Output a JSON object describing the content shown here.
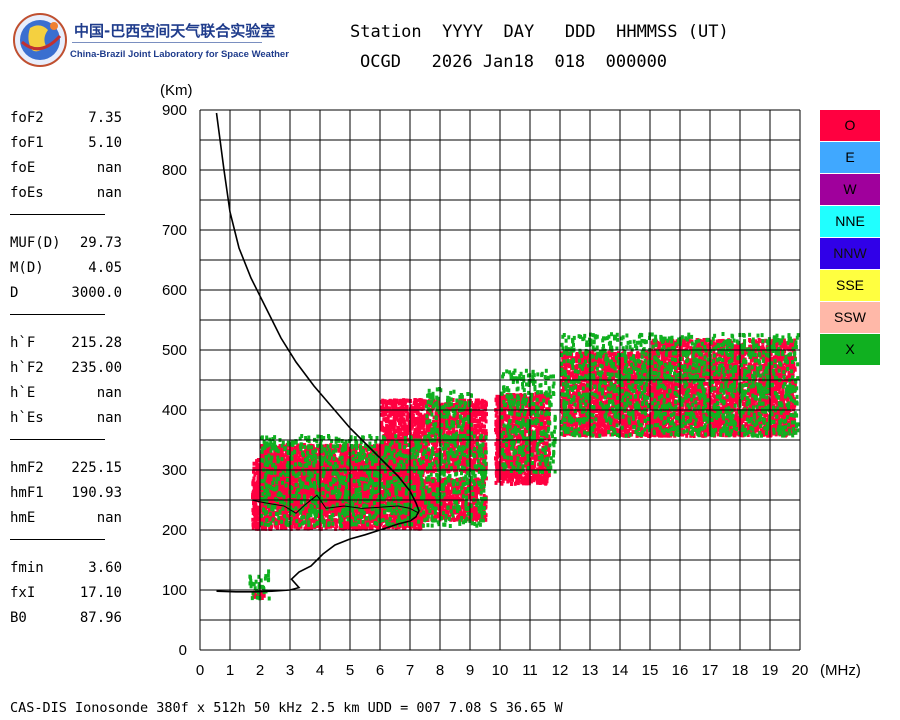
{
  "logo": {
    "icon": "globe-logo-icon",
    "name_cn": "中国-巴西空间天气联合实验室",
    "name_en": "China-Brazil Joint Laboratory for Space Weather"
  },
  "header": {
    "line1": "Station  YYYY  DAY   DDD  HHMMSS (UT)",
    "line2": "OCGD   2026 Jan18  018  000000"
  },
  "parameters": [
    {
      "group": [
        {
          "name": "foF2",
          "value": "7.35"
        },
        {
          "name": "foF1",
          "value": "5.10"
        },
        {
          "name": "foE",
          "value": "nan"
        },
        {
          "name": "foEs",
          "value": "nan"
        }
      ]
    },
    {
      "group": [
        {
          "name": "MUF(D)",
          "value": "29.73"
        },
        {
          "name": "M(D)",
          "value": "4.05"
        },
        {
          "name": "D",
          "value": "3000.0"
        }
      ]
    },
    {
      "group": [
        {
          "name": "h`F",
          "value": "215.28"
        },
        {
          "name": "h`F2",
          "value": "235.00"
        },
        {
          "name": "h`E",
          "value": "nan"
        },
        {
          "name": "h`Es",
          "value": "nan"
        }
      ]
    },
    {
      "group": [
        {
          "name": "hmF2",
          "value": "225.15"
        },
        {
          "name": "hmF1",
          "value": "190.93"
        },
        {
          "name": "hmE",
          "value": "nan"
        }
      ]
    },
    {
      "group": [
        {
          "name": "fmin",
          "value": "3.60"
        },
        {
          "name": "fxI",
          "value": "17.10"
        },
        {
          "name": "B0",
          "value": "87.96"
        }
      ]
    }
  ],
  "legend": [
    {
      "label": "O",
      "color": "#ff0040"
    },
    {
      "label": "E",
      "color": "#40a8ff"
    },
    {
      "label": "W",
      "color": "#a0009c"
    },
    {
      "label": "NNE",
      "color": "#20ffff"
    },
    {
      "label": "NNW",
      "color": "#3000e8"
    },
    {
      "label": "SSE",
      "color": "#ffff40"
    },
    {
      "label": "SSW",
      "color": "#ffb8a8"
    },
    {
      "label": "X",
      "color": "#10b020"
    }
  ],
  "footer": "CAS-DIS Ionosonde 380f x 512h 50 kHz 2.5 km UDD = 007 7.08 S 36.65 W",
  "chart_data": {
    "type": "scatter",
    "title": "",
    "xlabel": "(MHz)",
    "ylabel": "(Km)",
    "xlim": [
      0,
      20
    ],
    "ylim": [
      0,
      900
    ],
    "xticks": [
      "0",
      "1",
      "2",
      "3",
      "4",
      "5",
      "6",
      "7",
      "8",
      "9",
      "10",
      "11",
      "12",
      "13",
      "14",
      "15",
      "16",
      "17",
      "18",
      "19",
      "20"
    ],
    "yticks": [
      "0",
      "100",
      "200",
      "300",
      "400",
      "500",
      "600",
      "700",
      "800",
      "900"
    ],
    "grid": true,
    "colors": {
      "O": "#ff0040",
      "X": "#10b020",
      "profile": "#000000"
    },
    "echo_regions": [
      {
        "name": "O",
        "f_min": 1.7,
        "f_max": 2.1,
        "h_min": 88,
        "h_max": 100
      },
      {
        "name": "O",
        "f_min": 1.7,
        "f_max": 7.4,
        "h_min": 205,
        "h_max": 320
      },
      {
        "name": "O",
        "f_min": 2.0,
        "f_max": 6.8,
        "h_min": 240,
        "h_max": 345
      },
      {
        "name": "O",
        "f_min": 6.5,
        "f_max": 9.5,
        "h_min": 220,
        "h_max": 290
      },
      {
        "name": "O",
        "f_min": 6.0,
        "f_max": 9.5,
        "h_min": 300,
        "h_max": 420
      },
      {
        "name": "O",
        "f_min": 9.8,
        "f_max": 11.6,
        "h_min": 280,
        "h_max": 430
      },
      {
        "name": "O",
        "f_min": 12.0,
        "f_max": 15.5,
        "h_min": 360,
        "h_max": 500
      },
      {
        "name": "O",
        "f_min": 15.0,
        "f_max": 19.8,
        "h_min": 360,
        "h_max": 520
      },
      {
        "name": "X",
        "f_min": 1.6,
        "f_max": 2.3,
        "h_min": 88,
        "h_max": 135
      },
      {
        "name": "X",
        "f_min": 2.0,
        "f_max": 9.5,
        "h_min": 210,
        "h_max": 360
      },
      {
        "name": "X",
        "f_min": 7.5,
        "f_max": 9.0,
        "h_min": 350,
        "h_max": 440
      },
      {
        "name": "X",
        "f_min": 10.0,
        "f_max": 11.8,
        "h_min": 300,
        "h_max": 470
      },
      {
        "name": "X",
        "f_min": 12.0,
        "f_max": 19.9,
        "h_min": 360,
        "h_max": 530
      }
    ],
    "profile": [
      {
        "f": 0.55,
        "h": 895
      },
      {
        "f": 0.8,
        "h": 800
      },
      {
        "f": 1.0,
        "h": 730
      },
      {
        "f": 1.3,
        "h": 670
      },
      {
        "f": 1.7,
        "h": 620
      },
      {
        "f": 2.2,
        "h": 570
      },
      {
        "f": 2.7,
        "h": 520
      },
      {
        "f": 3.2,
        "h": 480
      },
      {
        "f": 3.8,
        "h": 440
      },
      {
        "f": 4.4,
        "h": 405
      },
      {
        "f": 5.0,
        "h": 370
      },
      {
        "f": 5.6,
        "h": 340
      },
      {
        "f": 6.1,
        "h": 315
      },
      {
        "f": 6.6,
        "h": 290
      },
      {
        "f": 7.0,
        "h": 265
      },
      {
        "f": 7.2,
        "h": 245
      },
      {
        "f": 7.3,
        "h": 232
      },
      {
        "f": 7.2,
        "h": 222
      },
      {
        "f": 7.0,
        "h": 215
      },
      {
        "f": 6.6,
        "h": 210
      },
      {
        "f": 6.0,
        "h": 200
      },
      {
        "f": 5.5,
        "h": 192
      },
      {
        "f": 5.0,
        "h": 185
      },
      {
        "f": 4.5,
        "h": 175
      },
      {
        "f": 4.1,
        "h": 160
      },
      {
        "f": 3.7,
        "h": 140
      },
      {
        "f": 3.3,
        "h": 130
      },
      {
        "f": 3.05,
        "h": 118
      },
      {
        "f": 3.3,
        "h": 104
      },
      {
        "f": 3.0,
        "h": 100
      },
      {
        "f": 2.4,
        "h": 98
      },
      {
        "f": 1.8,
        "h": 97
      },
      {
        "f": 1.2,
        "h": 97
      },
      {
        "f": 0.55,
        "h": 98
      }
    ],
    "trace": [
      {
        "f": 1.7,
        "h": 250
      },
      {
        "f": 2.2,
        "h": 245
      },
      {
        "f": 2.8,
        "h": 240
      },
      {
        "f": 3.2,
        "h": 228
      },
      {
        "f": 3.5,
        "h": 242
      },
      {
        "f": 3.9,
        "h": 258
      },
      {
        "f": 4.2,
        "h": 236
      },
      {
        "f": 4.8,
        "h": 240
      },
      {
        "f": 5.4,
        "h": 236
      },
      {
        "f": 6.0,
        "h": 238
      },
      {
        "f": 6.6,
        "h": 240
      },
      {
        "f": 7.0,
        "h": 236
      },
      {
        "f": 7.3,
        "h": 228
      }
    ]
  }
}
